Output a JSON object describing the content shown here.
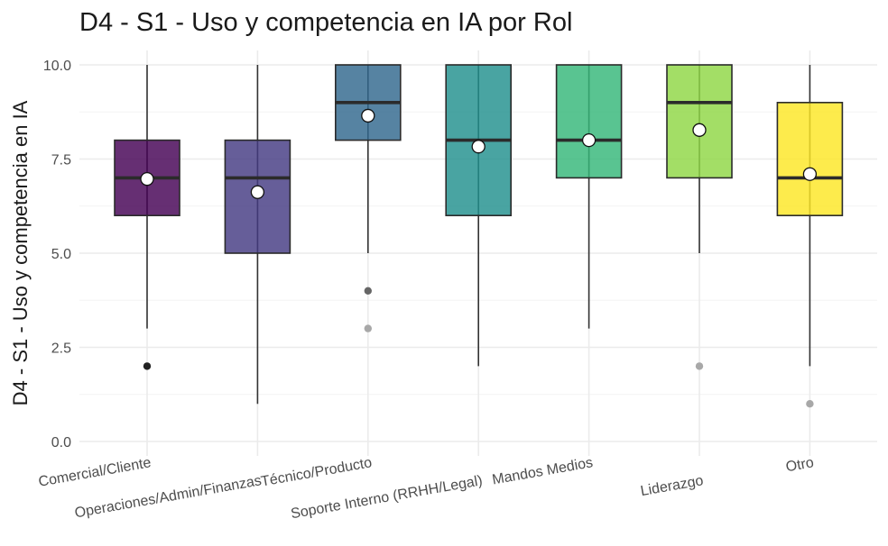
{
  "chart_data": {
    "type": "box",
    "title": "D4 - S1 - Uso y competencia en IA por Rol",
    "ylabel": "D4 - S1 - Uso y competencia en IA",
    "xlabel": "",
    "ylim": [
      -0.5,
      10.5
    ],
    "yticks": [
      0.0,
      2.5,
      5.0,
      7.5,
      10.0
    ],
    "ytick_labels": [
      "0.0",
      "2.5",
      "5.0",
      "7.5",
      "10.0"
    ],
    "grid": true,
    "categories": [
      "Comercial/Cliente",
      "Operaciones/Admin/Finanzas",
      "Técnico/Producto",
      "Soporte Interno (RRHH/Legal)",
      "Mandos Medios",
      "Liderazgo",
      "Otro"
    ],
    "boxes": [
      {
        "whisker_low": 3,
        "q1": 6,
        "median": 7,
        "q3": 8,
        "whisker_high": 10,
        "mean": 6.97,
        "outliers": [
          {
            "y": 2,
            "shade": "dark"
          }
        ],
        "color": "#440154"
      },
      {
        "whisker_low": 1,
        "q1": 5,
        "median": 7,
        "q3": 8,
        "whisker_high": 10,
        "mean": 6.62,
        "outliers": [],
        "color": "#443a83"
      },
      {
        "whisker_low": 5,
        "q1": 8,
        "median": 9,
        "q3": 10,
        "whisker_high": 10,
        "mean": 8.65,
        "outliers": [
          {
            "y": 4,
            "shade": "mid"
          },
          {
            "y": 3,
            "shade": "light"
          }
        ],
        "color": "#31688e"
      },
      {
        "whisker_low": 2,
        "q1": 6,
        "median": 8,
        "q3": 10,
        "whisker_high": 10,
        "mean": 7.83,
        "outliers": [],
        "color": "#21908d"
      },
      {
        "whisker_low": 3,
        "q1": 7,
        "median": 8,
        "q3": 10,
        "whisker_high": 10,
        "mean": 8.0,
        "outliers": [],
        "color": "#35b779"
      },
      {
        "whisker_low": 5,
        "q1": 7,
        "median": 9,
        "q3": 10,
        "whisker_high": 10,
        "mean": 8.27,
        "outliers": [
          {
            "y": 2,
            "shade": "light"
          }
        ],
        "color": "#8fd744"
      },
      {
        "whisker_low": 2,
        "q1": 6,
        "median": 7,
        "q3": 9,
        "whisker_high": 10,
        "mean": 7.1,
        "outliers": [
          {
            "y": 1,
            "shade": "light"
          }
        ],
        "color": "#fde725"
      }
    ]
  }
}
